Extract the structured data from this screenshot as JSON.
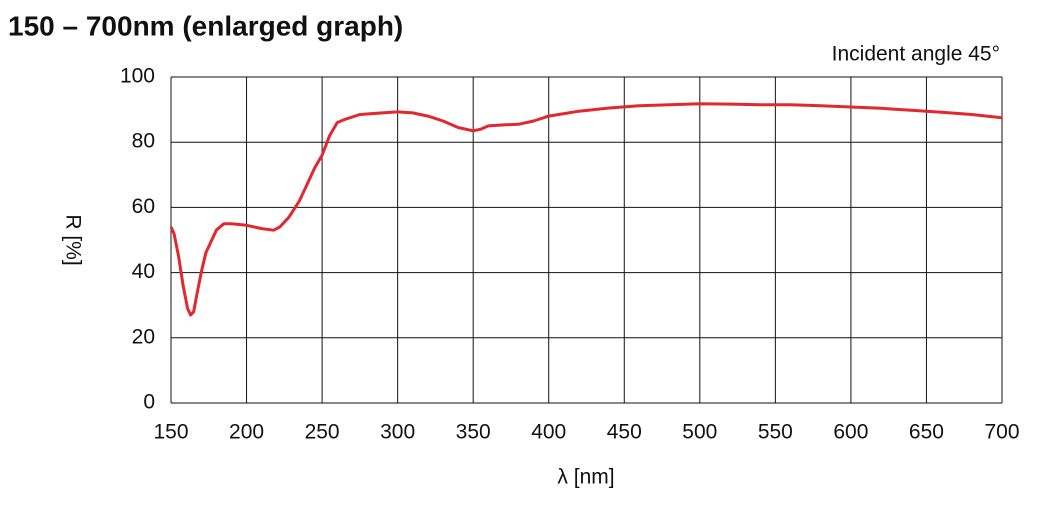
{
  "chart_data": {
    "type": "line",
    "title": "150 – 700nm (enlarged graph)",
    "annotation": "Incident angle 45°",
    "x_label": "λ [nm]",
    "y_label": "R [%]",
    "color": "#e0282e",
    "grid": true,
    "x": [
      150,
      152,
      155,
      158,
      161,
      163,
      165,
      167,
      170,
      173,
      177,
      180,
      185,
      190,
      200,
      210,
      218,
      222,
      228,
      235,
      240,
      245,
      250,
      255,
      260,
      265,
      275,
      290,
      300,
      310,
      320,
      330,
      340,
      350,
      355,
      360,
      370,
      380,
      390,
      400,
      420,
      440,
      460,
      480,
      500,
      520,
      540,
      560,
      580,
      600,
      620,
      640,
      660,
      680,
      700
    ],
    "values": [
      54,
      52,
      45,
      36,
      29,
      27,
      28,
      33,
      40,
      46,
      50,
      53,
      55,
      55,
      54.5,
      53.5,
      53,
      54,
      57,
      62,
      67,
      72,
      76,
      82,
      86,
      87,
      88.5,
      89,
      89.3,
      89,
      88,
      86.5,
      84.5,
      83.5,
      84,
      85,
      85.3,
      85.5,
      86.5,
      88,
      89.5,
      90.5,
      91.2,
      91.5,
      91.8,
      91.7,
      91.5,
      91.5,
      91.2,
      90.8,
      90.4,
      89.8,
      89.2,
      88.5,
      87.5
    ],
    "xlim": [
      150,
      700
    ],
    "xticks": [
      150,
      200,
      250,
      300,
      350,
      400,
      450,
      500,
      550,
      600,
      650,
      700
    ],
    "ylim": [
      0,
      100
    ],
    "yticks": [
      0,
      20,
      40,
      60,
      80,
      100
    ]
  }
}
